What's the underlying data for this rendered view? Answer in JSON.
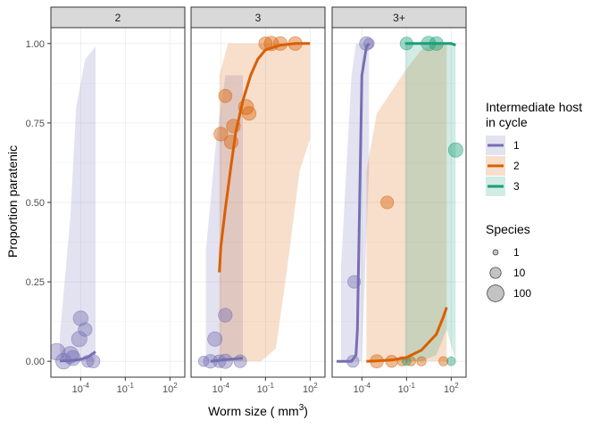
{
  "chart_data": {
    "type": "scatter",
    "ylabel": "Proportion paratenic",
    "xlabel_main": "Worm size ( mm",
    "xlabel_sup": "3",
    "xlabel_close": ")",
    "x_scale": "log10",
    "xlim": [
      1e-06,
      1000
    ],
    "ylim": [
      -0.05,
      1.05
    ],
    "x_tick_values": [
      0.0001,
      0.1,
      100
    ],
    "x_tick_labels": [
      {
        "base": "10",
        "exp": "-4"
      },
      {
        "base": "10",
        "exp": "-1"
      },
      {
        "base": "10",
        "exp": "2"
      }
    ],
    "y_tick_values": [
      0,
      0.25,
      0.5,
      0.75,
      1
    ],
    "y_tick_labels": [
      "0.00",
      "0.25",
      "0.50",
      "0.75",
      "1.00"
    ],
    "colors": {
      "1": "#7570b3",
      "2": "#d95f02",
      "3": "#1b9e77"
    },
    "panels": [
      {
        "label": "2",
        "series": [
          {
            "host": "1",
            "curve": [
              [
                4e-06,
                0.001
              ],
              [
                2e-05,
                0.002
              ],
              [
                0.0001,
                0.006
              ],
              [
                0.0003,
                0.013
              ],
              [
                0.001,
                0.03
              ]
            ],
            "band": [
              [
                4e-06,
                0,
                0.08
              ],
              [
                2e-05,
                0,
                0.45
              ],
              [
                5e-05,
                0,
                0.8
              ],
              [
                0.0002,
                0,
                0.95
              ],
              [
                0.001,
                0,
                0.99
              ]
            ]
          }
        ],
        "points": [
          {
            "host": "1",
            "x": 2.5e-06,
            "y": 0.03,
            "n": 100
          },
          {
            "host": "1",
            "x": 7e-06,
            "y": 0.0,
            "n": 60
          },
          {
            "host": "1",
            "x": 2e-05,
            "y": 0.02,
            "n": 100
          },
          {
            "host": "1",
            "x": 3e-05,
            "y": 0.01,
            "n": 50
          },
          {
            "host": "1",
            "x": 8e-05,
            "y": 0.07,
            "n": 60
          },
          {
            "host": "1",
            "x": 0.0001,
            "y": 0.135,
            "n": 45
          },
          {
            "host": "1",
            "x": 0.0002,
            "y": 0.1,
            "n": 30
          },
          {
            "host": "1",
            "x": 0.0003,
            "y": 0.0,
            "n": 15
          },
          {
            "host": "1",
            "x": 0.0007,
            "y": 0.0,
            "n": 25
          }
        ]
      },
      {
        "label": "3",
        "series": [
          {
            "host": "1",
            "curve": [
              [
                2e-05,
                0.0
              ],
              [
                0.0002,
                0.005
              ],
              [
                0.003,
                0.01
              ]
            ],
            "band": [
              [
                1e-05,
                0,
                0.35
              ],
              [
                5e-05,
                0,
                0.7
              ],
              [
                0.0002,
                0,
                0.9
              ],
              [
                0.001,
                0,
                0.9
              ],
              [
                0.003,
                0,
                0.9
              ]
            ]
          },
          {
            "host": "2",
            "curve": [
              [
                8e-05,
                0.28
              ],
              [
                0.0001,
                0.36
              ],
              [
                0.0002,
                0.48
              ],
              [
                0.0005,
                0.62
              ],
              [
                0.001,
                0.72
              ],
              [
                0.003,
                0.82
              ],
              [
                0.01,
                0.9
              ],
              [
                0.03,
                0.95
              ],
              [
                0.1,
                0.98
              ],
              [
                1,
                0.995
              ],
              [
                10,
                1.0
              ],
              [
                100,
                1.0
              ]
            ],
            "band": [
              [
                8e-05,
                0,
                0.9
              ],
              [
                0.0003,
                0,
                1.0
              ],
              [
                0.005,
                0,
                1.0
              ],
              [
                0.05,
                0.0,
                1.0
              ],
              [
                0.5,
                0.04,
                1.0
              ],
              [
                3,
                0.3,
                1.0
              ],
              [
                20,
                0.6,
                1.0
              ],
              [
                100,
                0.7,
                1.0
              ]
            ]
          }
        ],
        "points": [
          {
            "host": "1",
            "x": 7e-06,
            "y": 0.0,
            "n": 8
          },
          {
            "host": "1",
            "x": 2e-05,
            "y": 0.0,
            "n": 30
          },
          {
            "host": "1",
            "x": 4e-05,
            "y": 0.07,
            "n": 40
          },
          {
            "host": "1",
            "x": 8e-05,
            "y": 0.0,
            "n": 20
          },
          {
            "host": "1",
            "x": 0.0002,
            "y": 0.0,
            "n": 40
          },
          {
            "host": "1",
            "x": 0.0002,
            "y": 0.145,
            "n": 30
          },
          {
            "host": "1",
            "x": 0.002,
            "y": 0.0,
            "n": 20
          },
          {
            "host": "2",
            "x": 0.0001,
            "y": 0.715,
            "n": 30
          },
          {
            "host": "2",
            "x": 0.0002,
            "y": 0.835,
            "n": 25
          },
          {
            "host": "2",
            "x": 0.0005,
            "y": 0.69,
            "n": 30
          },
          {
            "host": "2",
            "x": 0.0007,
            "y": 0.74,
            "n": 30
          },
          {
            "host": "2",
            "x": 0.005,
            "y": 0.8,
            "n": 50
          },
          {
            "host": "2",
            "x": 0.008,
            "y": 0.78,
            "n": 30
          },
          {
            "host": "2",
            "x": 0.1,
            "y": 1.0,
            "n": 25
          },
          {
            "host": "2",
            "x": 0.25,
            "y": 1.0,
            "n": 40
          },
          {
            "host": "2",
            "x": 1,
            "y": 1.0,
            "n": 30
          },
          {
            "host": "2",
            "x": 10,
            "y": 1.0,
            "n": 30
          }
        ]
      },
      {
        "label": "3+",
        "series": [
          {
            "host": "1",
            "curve": [
              [
                2e-06,
                0.0
              ],
              [
                2e-05,
                0.0
              ],
              [
                4e-05,
                0.02
              ],
              [
                5e-05,
                0.1
              ],
              [
                7e-05,
                0.5
              ],
              [
                0.0001,
                0.9
              ],
              [
                0.0002,
                0.99
              ],
              [
                0.0003,
                1.0
              ]
            ],
            "band": [
              [
                4e-06,
                0,
                0.3
              ],
              [
                2e-05,
                0,
                0.9
              ],
              [
                4e-05,
                0,
                1.0
              ],
              [
                0.0001,
                0,
                1.0
              ],
              [
                0.0002,
                0.4,
                1.0
              ],
              [
                0.0003,
                0.6,
                1.0
              ]
            ]
          },
          {
            "host": "2",
            "curve": [
              [
                0.0002,
                0.0
              ],
              [
                0.001,
                0.001
              ],
              [
                0.01,
                0.004
              ],
              [
                0.1,
                0.012
              ],
              [
                1,
                0.035
              ],
              [
                10,
                0.085
              ],
              [
                30,
                0.14
              ],
              [
                50,
                0.17
              ]
            ],
            "band": [
              [
                0.0002,
                0,
                0.6
              ],
              [
                0.001,
                0,
                0.78
              ],
              [
                0.01,
                0,
                0.85
              ],
              [
                0.1,
                0,
                0.92
              ],
              [
                1,
                0,
                0.98
              ],
              [
                10,
                0,
                1.0
              ],
              [
                50,
                0,
                1.0
              ]
            ]
          },
          {
            "host": "3",
            "curve": [
              [
                0.08,
                1.0
              ],
              [
                1,
                1.0
              ],
              [
                10,
                1.0
              ],
              [
                100,
                1.0
              ],
              [
                200,
                0.995
              ]
            ],
            "band": [
              [
                0.08,
                0.0,
                1.0
              ],
              [
                1,
                0.0,
                1.0
              ],
              [
                10,
                0.02,
                1.0
              ],
              [
                50,
                0.1,
                1.0
              ],
              [
                200,
                0.0,
                1.0
              ]
            ]
          }
        ],
        "points": [
          {
            "host": "1",
            "x": 3e-05,
            "y": 0.25,
            "n": 20
          },
          {
            "host": "1",
            "x": 2.5e-05,
            "y": 0.0,
            "n": 15
          },
          {
            "host": "1",
            "x": 0.0002,
            "y": 1.0,
            "n": 30
          },
          {
            "host": "1",
            "x": 0.0003,
            "y": 1.0,
            "n": 8
          },
          {
            "host": "2",
            "x": 0.001,
            "y": 0.0,
            "n": 25
          },
          {
            "host": "2",
            "x": 0.005,
            "y": 0.5,
            "n": 20
          },
          {
            "host": "2",
            "x": 0.01,
            "y": 0.0,
            "n": 15
          },
          {
            "host": "2",
            "x": 0.05,
            "y": 0.0,
            "n": 5
          },
          {
            "host": "2",
            "x": 0.2,
            "y": 0.0,
            "n": 5
          },
          {
            "host": "2",
            "x": 1,
            "y": 0.0,
            "n": 5
          },
          {
            "host": "2",
            "x": 30,
            "y": 0.0,
            "n": 5
          },
          {
            "host": "3",
            "x": 0.1,
            "y": 0.0,
            "n": 4
          },
          {
            "host": "3",
            "x": 100,
            "y": 0.0,
            "n": 4
          },
          {
            "host": "3",
            "x": 0.1,
            "y": 1.0,
            "n": 20
          },
          {
            "host": "3",
            "x": 3,
            "y": 1.0,
            "n": 40
          },
          {
            "host": "3",
            "x": 10,
            "y": 1.0,
            "n": 30
          },
          {
            "host": "3",
            "x": 200,
            "y": 0.665,
            "n": 40
          }
        ]
      }
    ],
    "legend": {
      "placement": "right",
      "color_title_line1": "Intermediate host",
      "color_title_line2": "in cycle",
      "color_items": [
        {
          "key": "1",
          "label": "1"
        },
        {
          "key": "2",
          "label": "2"
        },
        {
          "key": "3",
          "label": "3"
        }
      ],
      "size_title": "Species",
      "size_items": [
        {
          "n": 1,
          "label": "1"
        },
        {
          "n": 10,
          "label": "10"
        },
        {
          "n": 100,
          "label": "100"
        }
      ]
    }
  }
}
